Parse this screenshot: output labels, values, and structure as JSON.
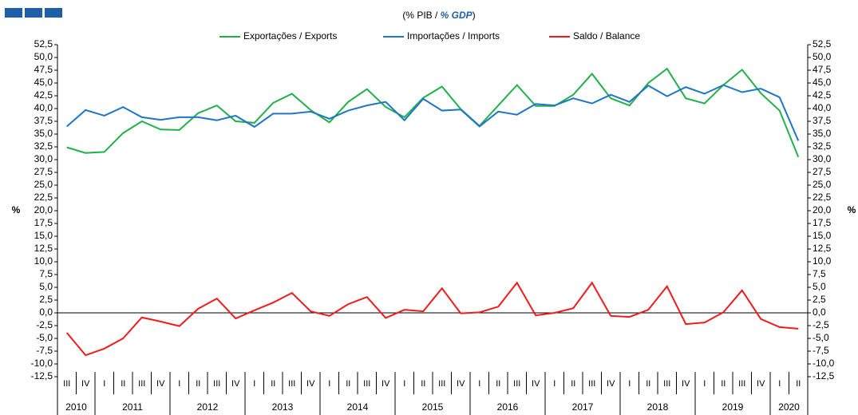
{
  "chart_data": {
    "type": "line",
    "subtitle": [
      "(% PIB / ",
      "% GDP",
      ")"
    ],
    "ylabel": "%",
    "y2label": "%",
    "categories": [
      "III",
      "IV",
      "I",
      "II",
      "III",
      "IV",
      "I",
      "II",
      "III",
      "IV",
      "I",
      "II",
      "III",
      "IV",
      "I",
      "II",
      "III",
      "IV",
      "I",
      "II",
      "III",
      "IV",
      "I",
      "II",
      "III",
      "IV",
      "I",
      "II",
      "III",
      "IV",
      "I",
      "II",
      "III",
      "IV",
      "I",
      "II",
      "III",
      "IV",
      "I",
      "II"
    ],
    "years": [
      "2010",
      "2011",
      "2012",
      "2013",
      "2014",
      "2015",
      "2016",
      "2017",
      "2018",
      "2019",
      "2020"
    ],
    "series": [
      {
        "name": "Exportações / Exports",
        "color": "#22b04b",
        "values": [
          32.4,
          31.3,
          31.5,
          35.2,
          37.5,
          35.9,
          35.8,
          39.1,
          40.6,
          37.5,
          37.2,
          41.1,
          42.9,
          39.7,
          37.3,
          41.3,
          43.8,
          40.3,
          38.3,
          42.1,
          44.3,
          39.9,
          36.6,
          40.6,
          44.6,
          40.5,
          40.5,
          42.7,
          46.8,
          42.0,
          40.6,
          45.0,
          47.8,
          42.0,
          41.0,
          44.6,
          47.6,
          43.0,
          39.6,
          30.5
        ]
      },
      {
        "name": "Importações / Imports",
        "color": "#1f77c4",
        "values": [
          36.5,
          39.7,
          38.6,
          40.3,
          38.3,
          37.8,
          38.3,
          38.3,
          37.7,
          38.6,
          36.4,
          39.0,
          39.0,
          39.4,
          38.0,
          39.6,
          40.6,
          41.3,
          37.7,
          41.9,
          39.6,
          39.8,
          36.5,
          39.4,
          38.8,
          40.9,
          40.6,
          42.0,
          41.0,
          42.7,
          41.3,
          44.5,
          42.4,
          44.2,
          42.9,
          44.6,
          43.2,
          43.9,
          42.2,
          33.7
        ]
      },
      {
        "name": "Saldo / Balance",
        "color": "#ee1c1c",
        "values": [
          -3.9,
          -8.3,
          -7.0,
          -5.0,
          -0.9,
          -1.7,
          -2.6,
          0.8,
          2.8,
          -1.1,
          0.5,
          2.0,
          3.9,
          0.3,
          -0.6,
          1.7,
          3.1,
          -1.0,
          0.6,
          0.3,
          4.8,
          -0.1,
          0.1,
          1.2,
          5.9,
          -0.5,
          0.0,
          0.9,
          5.9,
          -0.6,
          -0.8,
          0.6,
          5.2,
          -2.2,
          -1.9,
          0.1,
          4.4,
          -1.2,
          -2.8,
          -3.1
        ]
      }
    ],
    "ylim": [
      -12.5,
      52.5
    ],
    "yticks": [
      {
        "value": -12.5,
        "label": "-12,5"
      },
      {
        "value": -10,
        "label": "-10,0"
      },
      {
        "value": -7.5,
        "label": "-7,5"
      },
      {
        "value": -5,
        "label": "-5,0"
      },
      {
        "value": -2.5,
        "label": "-2,5"
      },
      {
        "value": 0,
        "label": "0,0"
      },
      {
        "value": 2.5,
        "label": "2,5"
      },
      {
        "value": 5,
        "label": "5,0"
      },
      {
        "value": 7.5,
        "label": "7,5"
      },
      {
        "value": 10,
        "label": "10,0"
      },
      {
        "value": 12.5,
        "label": "12,5"
      },
      {
        "value": 15,
        "label": "15,0"
      },
      {
        "value": 17.5,
        "label": "17,5"
      },
      {
        "value": 20,
        "label": "20,0"
      },
      {
        "value": 22.5,
        "label": "22,5"
      },
      {
        "value": 25,
        "label": "25,0"
      },
      {
        "value": 27.5,
        "label": "27,5"
      },
      {
        "value": 30,
        "label": "30,0"
      },
      {
        "value": 32.5,
        "label": "32,5"
      },
      {
        "value": 35,
        "label": "35,0"
      },
      {
        "value": 37.5,
        "label": "37,5"
      },
      {
        "value": 40,
        "label": "40,0"
      },
      {
        "value": 42.5,
        "label": "42,5"
      },
      {
        "value": 45,
        "label": "45,0"
      },
      {
        "value": 47.5,
        "label": "47,5"
      },
      {
        "value": 50,
        "label": "50,0"
      },
      {
        "value": 52.5,
        "label": "52,5"
      }
    ],
    "y2lim": [
      -12.5,
      52.5
    ],
    "y2ticks": [
      {
        "value": -12.5,
        "label": "-12,5"
      },
      {
        "value": -10,
        "label": "-10,0"
      },
      {
        "value": -7.5,
        "label": "-7,5"
      },
      {
        "value": -5,
        "label": "-5,0"
      },
      {
        "value": -2.5,
        "label": "-2,5"
      },
      {
        "value": 0,
        "label": "0,0"
      },
      {
        "value": 2.5,
        "label": "2,5"
      },
      {
        "value": 5,
        "label": "5,0"
      },
      {
        "value": 7.5,
        "label": "7,5"
      },
      {
        "value": 10,
        "label": "10,0"
      },
      {
        "value": 12.5,
        "label": "12,5"
      },
      {
        "value": 15,
        "label": "15,0"
      },
      {
        "value": 17.5,
        "label": "17,5"
      },
      {
        "value": 20,
        "label": "20,0"
      },
      {
        "value": 22.5,
        "label": "22,5"
      },
      {
        "value": 25,
        "label": "25,0"
      },
      {
        "value": 27.5,
        "label": "27,5"
      },
      {
        "value": 30,
        "label": "30,0"
      },
      {
        "value": 32.5,
        "label": "32,5"
      },
      {
        "value": 35,
        "label": "35,0"
      },
      {
        "value": 37.5,
        "label": "37,5"
      },
      {
        "value": 40,
        "label": "40,0"
      },
      {
        "value": 42.5,
        "label": "42,5"
      },
      {
        "value": 45,
        "label": "45,0"
      },
      {
        "value": 47.5,
        "label": "47,5"
      },
      {
        "value": 50,
        "label": "50,0"
      },
      {
        "value": 52.5,
        "label": "52,5"
      }
    ],
    "grid": false
  }
}
